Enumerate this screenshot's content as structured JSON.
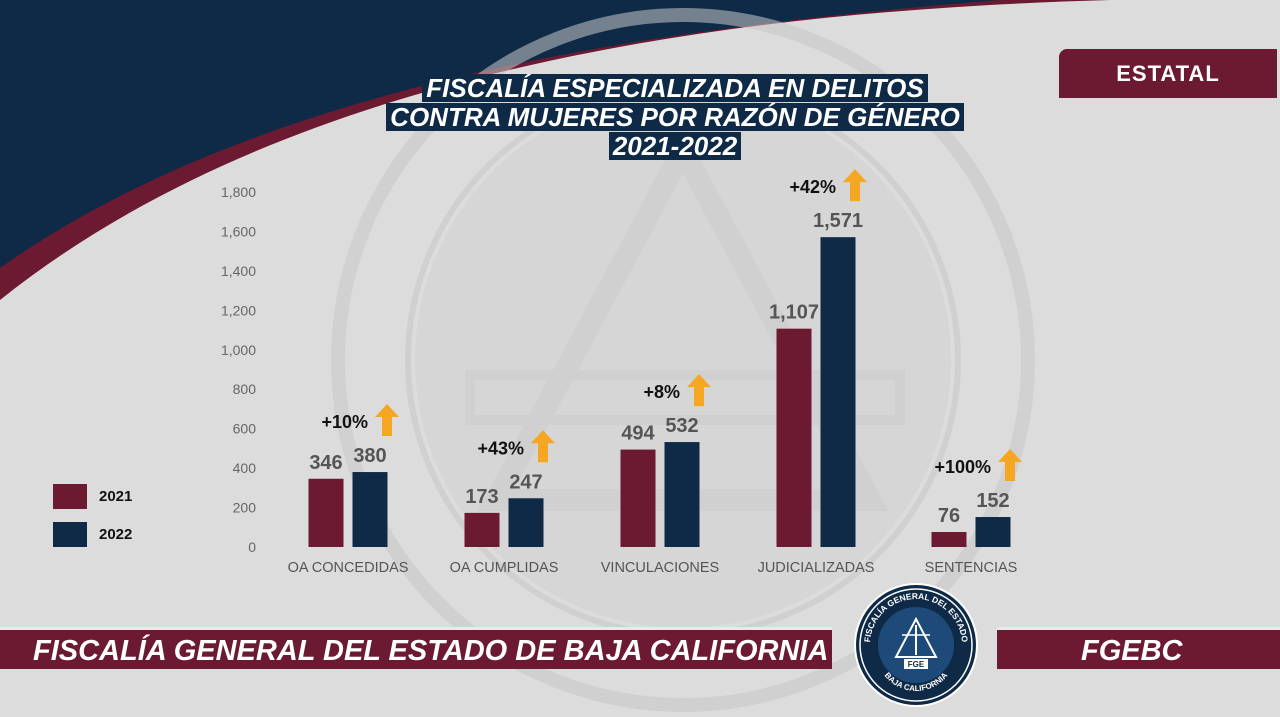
{
  "header": {
    "title_lines": [
      "FISCALÍA ESPECIALIZADA  EN DELITOS",
      "CONTRA MUJERES POR RAZÓN DE GÉNERO",
      "2021-2022"
    ],
    "badge": "ESTATAL"
  },
  "footer": {
    "left_text": "FISCALÍA GENERAL DEL ESTADO DE BAJA CALIFORNIA",
    "right_text": "FGEBC",
    "seal_text_top": "FISCALÍA GENERAL DEL ESTADO",
    "seal_text_bottom": "BAJA CALIFORNIA",
    "seal_center": "FGE"
  },
  "colors": {
    "series_2021": "#6b1a31",
    "series_2022": "#0e2a47",
    "arrow": "#f5a623",
    "navy": "#0e2a47",
    "maroon": "#6b1a31"
  },
  "chart_data": {
    "type": "bar",
    "categories": [
      "OA CONCEDIDAS",
      "OA CUMPLIDAS",
      "VINCULACIONES",
      "JUDICIALIZADAS",
      "SENTENCIAS"
    ],
    "series": [
      {
        "name": "2021",
        "values": [
          346,
          173,
          494,
          1107,
          76
        ],
        "labels": [
          "346",
          "173",
          "494",
          "1,107",
          "76"
        ]
      },
      {
        "name": "2022",
        "values": [
          380,
          247,
          532,
          1571,
          152
        ],
        "labels": [
          "380",
          "247",
          "532",
          "1,571",
          "152"
        ]
      }
    ],
    "annotations": [
      "+10%",
      "+43%",
      "+8%",
      "+42%",
      "+100%"
    ],
    "ylim": [
      0,
      1800
    ],
    "yticks": [
      "0",
      "200",
      "400",
      "600",
      "800",
      "1,000",
      "1,200",
      "1,400",
      "1,600",
      "1,800"
    ],
    "grid": false,
    "legend": "left"
  }
}
